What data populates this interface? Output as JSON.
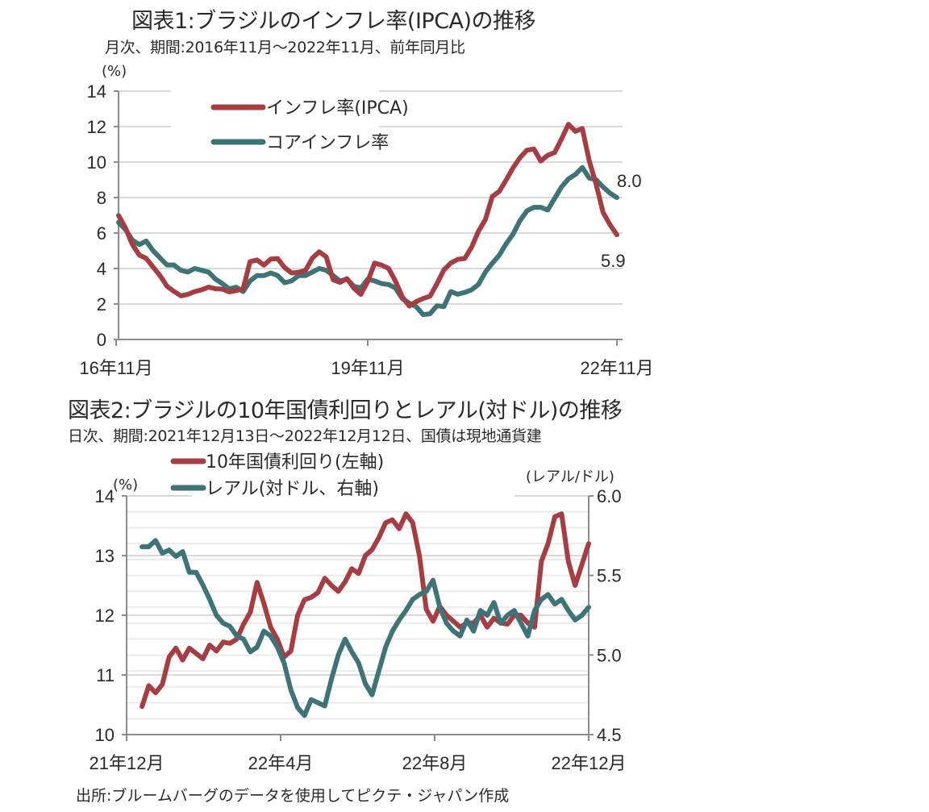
{
  "chart1": {
    "title": "図表1:ブラジルのインフレ率(IPCA)の推移",
    "subtitle": "月次、期間:2016年11月～2022年11月、前年同月比",
    "unit": "(%)",
    "legend": [
      "インフレ率(IPCA)",
      "コアインフレ率"
    ],
    "end_labels": [
      "5.9",
      "8.0"
    ]
  },
  "chart2": {
    "title": "図表2:ブラジルの10年国債利回りとレアル(対ドル)の推移",
    "subtitle": "日次、期間:2021年12月13日～2022年12月12日、国債は現地通貨建",
    "unit_left": "(%)",
    "unit_right": "(レアル/ドル)",
    "legend": [
      "10年国債利回り(左軸)",
      "レアル(対ドル、右軸)"
    ]
  },
  "source": "出所:ブルームバーグのデータを使用してピクテ・ジャパン作成",
  "colors": {
    "ipca": "#A63D42",
    "core": "#3E7377",
    "grid": "#D9D9D9",
    "axis": "#8C8C8C"
  },
  "chart_data": [
    {
      "type": "line",
      "title": "図表1:ブラジルのインフレ率(IPCA)の推移",
      "subtitle": "月次、期間:2016年11月～2022年11月、前年同月比",
      "ylabel": "(%)",
      "xlabel": "",
      "ylim": [
        0,
        14
      ],
      "yticks": [
        0,
        2,
        4,
        6,
        8,
        10,
        12,
        14
      ],
      "xticks": [
        {
          "label": "16年11月",
          "index": 0
        },
        {
          "label": "19年11月",
          "index": 36
        },
        {
          "label": "22年11月",
          "index": 72
        }
      ],
      "x_count": 73,
      "grid": true,
      "legend_position": "top-center",
      "series": [
        {
          "name": "インフレ率(IPCA)",
          "color": "#A63D42",
          "values": [
            6.99,
            6.29,
            5.35,
            4.76,
            4.57,
            4.08,
            3.6,
            3.0,
            2.71,
            2.46,
            2.54,
            2.7,
            2.8,
            2.95,
            2.86,
            2.84,
            2.68,
            2.76,
            2.86,
            4.39,
            4.48,
            4.19,
            4.53,
            4.56,
            4.05,
            3.75,
            3.78,
            3.89,
            4.58,
            4.94,
            4.66,
            3.37,
            3.22,
            3.43,
            2.89,
            2.54,
            3.27,
            4.31,
            4.19,
            4.01,
            3.3,
            2.4,
            1.88,
            2.13,
            2.31,
            2.44,
            3.14,
            3.92,
            4.31,
            4.52,
            4.56,
            5.2,
            6.1,
            6.76,
            8.06,
            8.35,
            8.99,
            9.68,
            10.25,
            10.67,
            10.74,
            10.06,
            10.38,
            10.54,
            11.3,
            12.13,
            11.73,
            11.89,
            10.07,
            8.73,
            7.17,
            6.47,
            5.9
          ]
        },
        {
          "name": "コアインフレ率",
          "color": "#3E7377",
          "values": [
            6.6,
            6.2,
            5.6,
            5.35,
            5.55,
            5.0,
            4.6,
            4.2,
            4.2,
            3.9,
            3.8,
            4.0,
            3.9,
            3.8,
            3.4,
            3.15,
            2.85,
            2.95,
            2.7,
            3.3,
            3.6,
            3.6,
            3.75,
            3.6,
            3.2,
            3.3,
            3.6,
            3.6,
            3.8,
            4.0,
            3.9,
            3.6,
            3.3,
            3.4,
            3.0,
            2.9,
            3.4,
            3.3,
            3.15,
            3.1,
            2.9,
            2.3,
            2.05,
            1.85,
            1.4,
            1.45,
            1.9,
            1.85,
            2.7,
            2.55,
            2.65,
            2.8,
            3.1,
            3.8,
            4.3,
            4.75,
            5.4,
            5.95,
            6.7,
            7.25,
            7.45,
            7.45,
            7.3,
            7.95,
            8.6,
            9.05,
            9.3,
            9.7,
            9.1,
            9.0,
            8.6,
            8.25,
            8.0
          ]
        }
      ],
      "annotations": [
        {
          "text": "5.9",
          "series": "インフレ率(IPCA)"
        },
        {
          "text": "8.0",
          "series": "コアインフレ率"
        }
      ]
    },
    {
      "type": "line",
      "title": "図表2:ブラジルの10年国債利回りとレアル(対ドル)の推移",
      "subtitle": "日次、期間:2021年12月13日～2022年12月12日、国債は現地通貨建",
      "ylabel": "(%)",
      "y2label": "(レアル/ドル)",
      "ylim": [
        10,
        14
      ],
      "y2lim": [
        4.5,
        6.0
      ],
      "yticks": [
        10,
        11,
        12,
        13,
        14
      ],
      "y2ticks": [
        "4.5",
        "5.0",
        "5.5",
        "6.0"
      ],
      "xticks": [
        {
          "label": "21年12月",
          "month_offset": 0
        },
        {
          "label": "22年4月",
          "month_offset": 4
        },
        {
          "label": "22年8月",
          "month_offset": 8
        },
        {
          "label": "22年12月",
          "month_offset": 12
        }
      ],
      "x_start_month_offset": 0.4,
      "x_end_month_offset": 12.0,
      "grid": true,
      "legend_position": "top-center",
      "series": [
        {
          "name": "10年国債利回り(左軸)",
          "axis": "left",
          "color": "#A63D42",
          "values": [
            10.47,
            10.82,
            10.7,
            10.84,
            11.3,
            11.45,
            11.25,
            11.45,
            11.36,
            11.27,
            11.5,
            11.4,
            11.55,
            11.53,
            11.6,
            11.85,
            12.05,
            12.55,
            12.2,
            11.8,
            11.6,
            11.3,
            11.4,
            12.0,
            12.26,
            12.3,
            12.38,
            12.62,
            12.5,
            12.4,
            12.56,
            12.78,
            12.7,
            13.0,
            13.1,
            13.3,
            13.55,
            13.6,
            13.45,
            13.7,
            13.55,
            12.99,
            12.1,
            11.9,
            12.15,
            12.0,
            11.9,
            11.8,
            11.87,
            11.87,
            12.0,
            11.8,
            11.95,
            11.87,
            11.85,
            12.0,
            12.0,
            11.87,
            11.8,
            12.9,
            13.2,
            13.65,
            13.7,
            12.9,
            12.5,
            12.85,
            13.2
          ]
        },
        {
          "name": "レアル(対ドル、右軸)",
          "axis": "right",
          "color": "#3E7377",
          "values": [
            5.68,
            5.68,
            5.72,
            5.64,
            5.66,
            5.62,
            5.65,
            5.52,
            5.52,
            5.44,
            5.35,
            5.25,
            5.2,
            5.18,
            5.12,
            5.1,
            5.02,
            5.05,
            5.15,
            5.12,
            5.05,
            4.95,
            4.78,
            4.67,
            4.62,
            4.72,
            4.7,
            4.68,
            4.85,
            5.0,
            5.1,
            5.02,
            4.95,
            4.82,
            4.75,
            4.9,
            5.05,
            5.15,
            5.22,
            5.28,
            5.35,
            5.38,
            5.4,
            5.47,
            5.3,
            5.2,
            5.15,
            5.12,
            5.22,
            5.15,
            5.28,
            5.25,
            5.33,
            5.2,
            5.25,
            5.28,
            5.2,
            5.12,
            5.28,
            5.35,
            5.38,
            5.32,
            5.35,
            5.28,
            5.22,
            5.25,
            5.3
          ]
        }
      ]
    }
  ]
}
